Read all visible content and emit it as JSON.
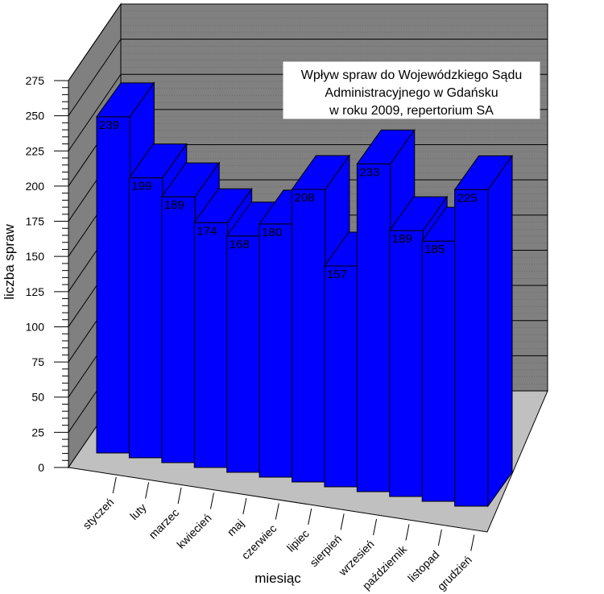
{
  "chart_data": {
    "type": "bar",
    "title_lines": [
      "Wpływ spraw do Wojewódzkiego Sądu",
      "Administracyjnego w Gdańsku",
      "w roku 2009, repertorium SA"
    ],
    "xlabel": "miesiąc",
    "ylabel": "liczba spraw",
    "ylim": [
      0,
      275
    ],
    "yticks": [
      "0",
      "25",
      "50",
      "75",
      "100",
      "125",
      "150",
      "175",
      "200",
      "225",
      "250",
      "275"
    ],
    "categories": [
      "styczeń",
      "luty",
      "marzec",
      "kwiecień",
      "maj",
      "czerwiec",
      "lipiec",
      "sierpień",
      "wrzesień",
      "październik",
      "listopad",
      "grudzień"
    ],
    "values": [
      239,
      199,
      189,
      174,
      168,
      180,
      208,
      157,
      233,
      189,
      185,
      225
    ],
    "value_labels": [
      "239",
      "199",
      "189",
      "174",
      "168",
      "180",
      "208",
      "157",
      "233",
      "189",
      "185",
      "225"
    ],
    "bar_color": "#0000ff",
    "grid": true,
    "projection": "3d"
  }
}
